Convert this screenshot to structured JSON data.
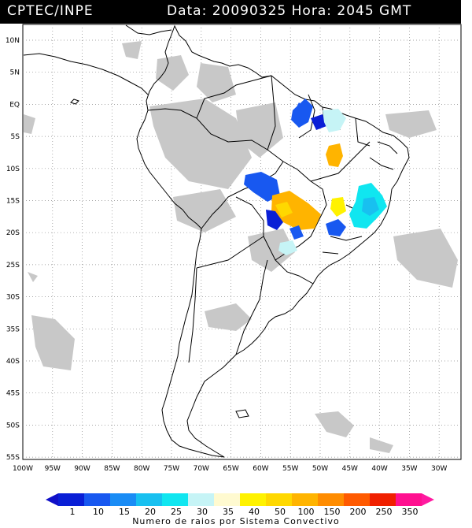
{
  "header": {
    "source": "CPTEC/INPE",
    "datetime": "Data: 20090325 Hora: 2045 GMT"
  },
  "map": {
    "lat_labels": [
      "10N",
      "5N",
      "EQ",
      "5S",
      "10S",
      "15S",
      "20S",
      "25S",
      "30S",
      "35S",
      "40S",
      "45S",
      "50S",
      "55S"
    ],
    "lon_labels": [
      "100W",
      "95W",
      "90W",
      "85W",
      "80W",
      "75W",
      "70W",
      "65W",
      "60W",
      "55W",
      "50W",
      "45W",
      "40W",
      "35W",
      "30W"
    ]
  },
  "legend": {
    "title": "Numero de raios por Sistema Convectivo",
    "values": [
      "1",
      "10",
      "15",
      "20",
      "25",
      "30",
      "35",
      "40",
      "50",
      "100",
      "150",
      "200",
      "250",
      "350"
    ],
    "colors": [
      "#0a1fd6",
      "#1858f0",
      "#1a8cf5",
      "#18c0f0",
      "#10e6f0",
      "#c6f4f6",
      "#fffad0",
      "#fff200",
      "#ffd800",
      "#ffb400",
      "#ff8c00",
      "#ff5a00",
      "#f02000",
      "#ff1090"
    ],
    "end_left_color": "#1010c8",
    "end_right_color": "#ff1aa0"
  },
  "colors": {
    "cloud_gray": "#c8c8c8",
    "coast": "#000000",
    "grid": "#888888"
  }
}
